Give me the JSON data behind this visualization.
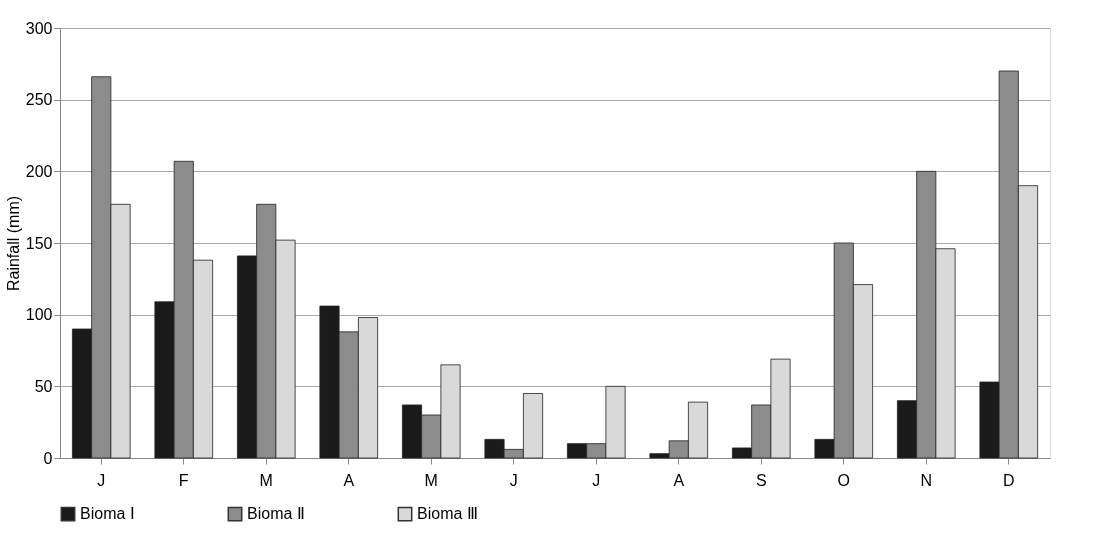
{
  "chart_data": {
    "type": "bar",
    "ylabel": "Rainfall (mm)",
    "categories": [
      "J",
      "F",
      "M",
      "A",
      "M",
      "J",
      "J",
      "A",
      "S",
      "O",
      "N",
      "D"
    ],
    "series": [
      {
        "name": "Bioma Ⅰ",
        "color": "#1a1a1a",
        "values": [
          90,
          109,
          141,
          106,
          37,
          13,
          10,
          3,
          7,
          13,
          40,
          53
        ]
      },
      {
        "name": "Bioma Ⅱ",
        "color": "#8c8c8c",
        "values": [
          266,
          207,
          177,
          88,
          30,
          6,
          10,
          12,
          37,
          150,
          200,
          270
        ]
      },
      {
        "name": "Bioma Ⅲ",
        "color": "#d9d9d9",
        "values": [
          177,
          138,
          152,
          98,
          65,
          45,
          50,
          39,
          69,
          121,
          146,
          190
        ]
      }
    ],
    "ylim": [
      0,
      300
    ],
    "yticks": [
      0,
      50,
      100,
      150,
      200,
      250,
      300
    ],
    "grid": "y",
    "legend": "bottom"
  }
}
